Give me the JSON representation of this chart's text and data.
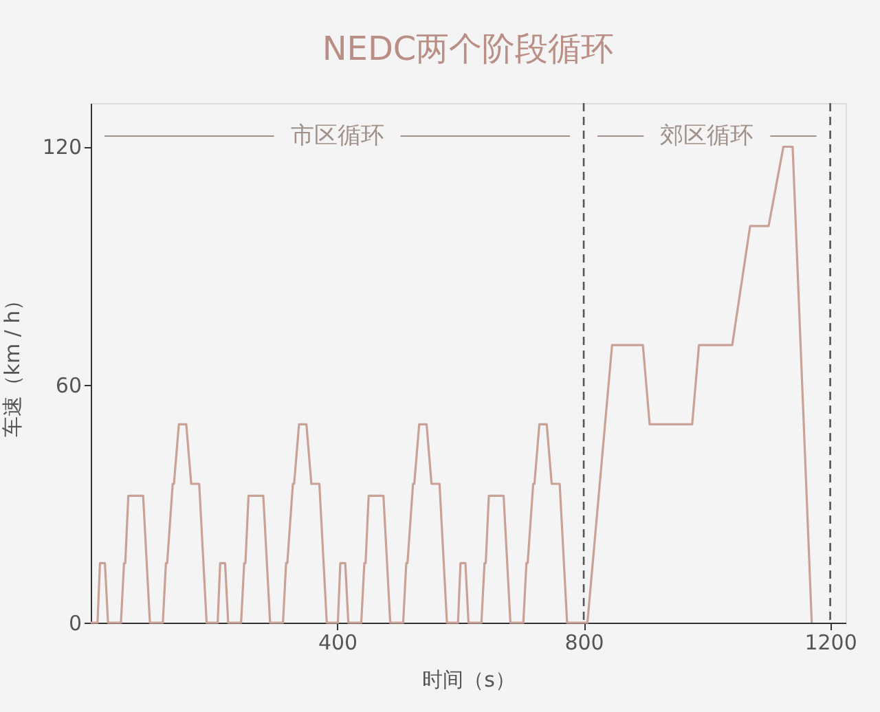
{
  "chart_data": {
    "type": "line",
    "title": "NEDC两个阶段循环",
    "xlabel": "时间（s）",
    "ylabel": "车速（km / h）",
    "x": [
      0,
      11,
      15,
      23,
      28,
      49,
      54,
      56,
      61,
      85,
      96,
      117,
      122,
      124,
      133,
      135,
      143,
      155,
      163,
      176,
      188,
      195,
      206,
      210,
      218,
      223,
      244,
      249,
      251,
      256,
      280,
      291,
      312,
      317,
      319,
      328,
      330,
      338,
      350,
      358,
      371,
      383,
      390,
      401,
      405,
      413,
      418,
      439,
      444,
      446,
      451,
      475,
      486,
      507,
      512,
      514,
      523,
      525,
      533,
      545,
      553,
      566,
      578,
      585,
      596,
      600,
      608,
      613,
      634,
      639,
      641,
      646,
      670,
      681,
      702,
      707,
      709,
      718,
      720,
      728,
      740,
      748,
      761,
      773,
      780,
      806,
      846,
      896,
      907,
      976,
      987,
      1041,
      1070,
      1100,
      1124,
      1139,
      1170
    ],
    "series": [
      {
        "color": "#c9a197",
        "values": [
          0,
          0,
          15,
          15,
          0,
          0,
          15,
          15,
          32,
          32,
          0,
          0,
          15,
          15,
          35,
          35,
          50,
          50,
          35,
          35,
          0,
          0,
          0,
          15,
          15,
          0,
          0,
          15,
          15,
          32,
          32,
          0,
          0,
          15,
          15,
          35,
          35,
          50,
          50,
          35,
          35,
          0,
          0,
          0,
          15,
          15,
          0,
          0,
          15,
          15,
          32,
          32,
          0,
          0,
          15,
          15,
          35,
          35,
          50,
          50,
          35,
          35,
          0,
          0,
          0,
          15,
          15,
          0,
          0,
          15,
          15,
          32,
          32,
          0,
          0,
          15,
          15,
          35,
          35,
          50,
          50,
          35,
          35,
          0,
          0,
          0,
          70,
          70,
          50,
          50,
          70,
          70,
          100,
          100,
          120,
          120,
          0
        ]
      }
    ],
    "xlim": [
      0,
      1225
    ],
    "ylim": [
      0,
      131
    ],
    "xticks": [
      400,
      800,
      1200
    ],
    "yticks": [
      0,
      60,
      120
    ],
    "grid": false,
    "marker": "none",
    "line_style": "solid",
    "ref_lines": [
      {
        "axis": "x",
        "value": 800,
        "color": "#555555",
        "line_style": "dashed"
      },
      {
        "axis": "x",
        "value": 1200,
        "color": "#555555",
        "line_style": "dashed"
      }
    ],
    "annotations": [
      "市区循环",
      "郊区循环"
    ]
  }
}
